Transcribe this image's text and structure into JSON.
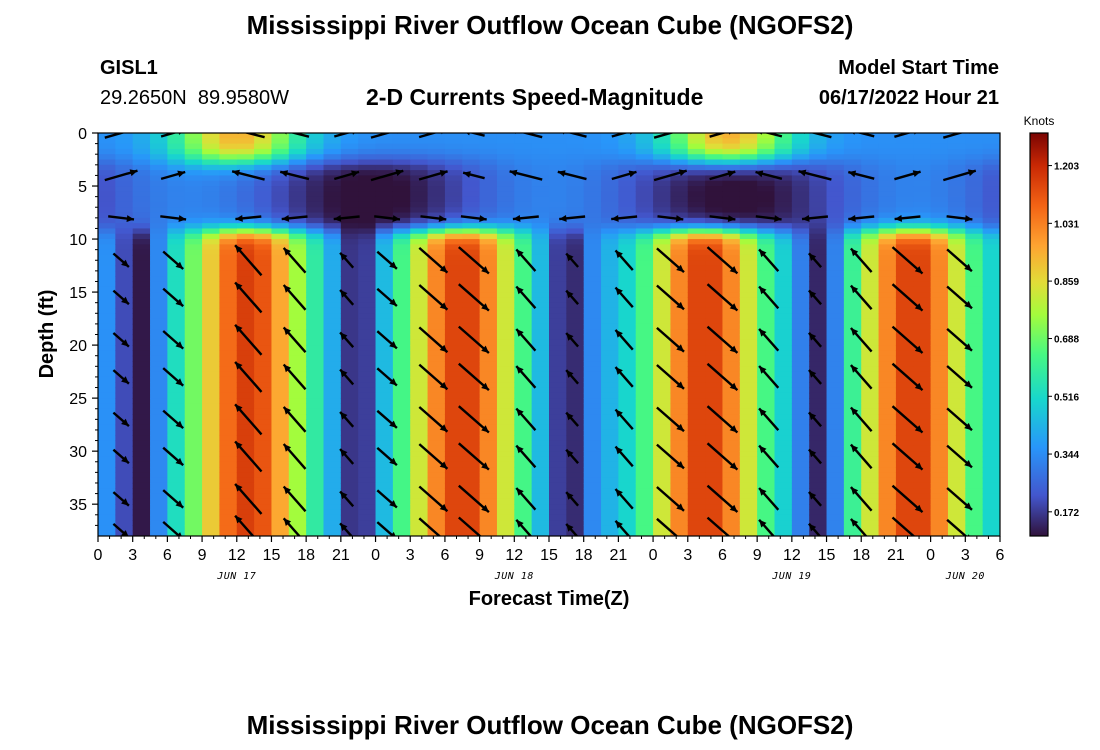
{
  "page": {
    "title": "Mississippi River Outflow Ocean Cube (NGOFS2)",
    "title_repeat": "Mississippi River Outflow Ocean Cube (NGOFS2)"
  },
  "header": {
    "station_id": "GISL1",
    "station_coords": "29.2650N  89.9580W",
    "plot_subtitle": "2-D Currents Speed-Magnitude",
    "model_start_label": "Model Start Time",
    "model_start_value": "06/17/2022 Hour 21"
  },
  "chart_data": {
    "type": "heatmap",
    "title": "2-D Currents Speed-Magnitude",
    "xlabel": "Forecast Time(Z)",
    "ylabel": "Depth (ft)",
    "x_start_hour": 0,
    "x_end_hour": 78,
    "x_tick_step_hours": 3,
    "x_tick_labels": [
      "0",
      "3",
      "6",
      "9",
      "12",
      "15",
      "18",
      "21",
      "0",
      "3",
      "6",
      "9",
      "12",
      "15",
      "18",
      "21",
      "0",
      "3",
      "6",
      "9",
      "12",
      "15",
      "18",
      "21",
      "0",
      "3",
      "6"
    ],
    "date_labels": [
      {
        "hour": 12,
        "text": "JUN 17"
      },
      {
        "hour": 36,
        "text": "JUN 18"
      },
      {
        "hour": 60,
        "text": "JUN 19"
      },
      {
        "hour": 75,
        "text": "JUN 20"
      }
    ],
    "ylim": [
      0,
      38
    ],
    "y_reversed": true,
    "y_ticks": [
      0,
      5,
      10,
      15,
      20,
      25,
      30,
      35
    ],
    "colorbar": {
      "unit": "Knots",
      "min": 0.1,
      "max": 1.3,
      "tick_labels": [
        "0.172",
        "0.344",
        "0.516",
        "0.688",
        "0.859",
        "1.031",
        "1.203"
      ]
    },
    "surface_layer_maxima_hours": [
      12,
      54.5
    ],
    "deep_layer_maxima_hours": [
      13,
      31.5,
      52.5,
      70.5
    ],
    "deep_layer_minima_hours": [
      3.5,
      22.5,
      40.5,
      62.5
    ],
    "arrow_columns_hours": [
      2,
      6.5,
      13,
      17,
      21.5,
      25,
      29,
      32.5,
      37,
      41,
      45.5,
      49.5,
      54,
      58,
      62,
      66,
      70,
      74.5
    ],
    "arrow_rows_depth_ft": [
      0,
      4,
      8,
      12,
      15.5,
      19.5,
      23,
      27,
      30.5,
      34.5,
      37.5
    ]
  }
}
